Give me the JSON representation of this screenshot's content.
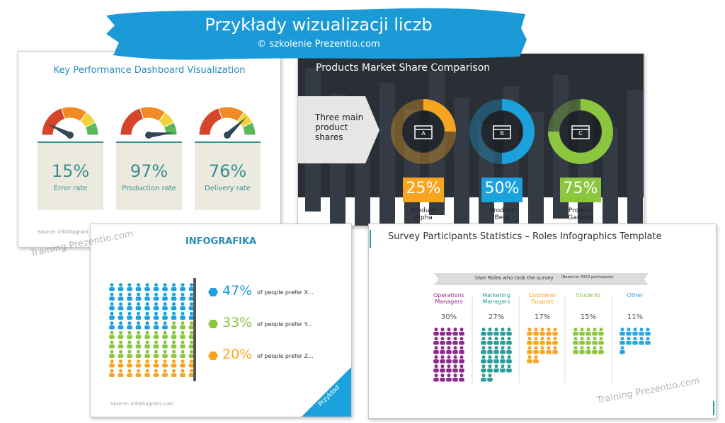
{
  "header": {
    "title": "Przykłady wizualizacji liczb",
    "subtitle": "© szkolenie Prezentio.com"
  },
  "watermarks": [
    "Training Prezentio.com",
    "Training Prezentio.com"
  ],
  "kpi": {
    "title": "Key Performance Dashboard Visualization",
    "source": "Source: infoDiagram.com",
    "gauges": [
      {
        "value": 15,
        "label": "15%",
        "caption": "Error rate"
      },
      {
        "value": 97,
        "label": "97%",
        "caption": "Production rate"
      },
      {
        "value": 76,
        "label": "76%",
        "caption": "Delivery rate"
      }
    ]
  },
  "market": {
    "title": "Products Market Share Comparison",
    "intro": "Three main product shares",
    "products": [
      {
        "letter": "A",
        "value": 25,
        "label": "25%",
        "name": "Product Alpha",
        "color": "#f7a521"
      },
      {
        "letter": "B",
        "value": 50,
        "label": "50%",
        "name": "Product Beta",
        "color": "#1ba1db"
      },
      {
        "letter": "C",
        "value": 75,
        "label": "75%",
        "name": "Product Gamma",
        "color": "#8cc63f"
      }
    ]
  },
  "infographic": {
    "title": "INFOGRAFIKA",
    "source": "Source: infoDiagram.com",
    "ribbon": "Przykład",
    "items": [
      {
        "value": 47,
        "label": "47%",
        "text": "of people prefer X...",
        "color": "#1ba1db"
      },
      {
        "value": 33,
        "label": "33%",
        "text": "of people prefer Y...",
        "color": "#8cc63f"
      },
      {
        "value": 20,
        "label": "20%",
        "text": "of people prefer Z...",
        "color": "#f7a521"
      }
    ]
  },
  "survey": {
    "title": "Survey Participants Statistics – Roles Infographics Template",
    "banner": "User Roles who took the survey",
    "banner_note": "(Based on XXXX participants)",
    "roles": [
      {
        "name": "Operations Managers",
        "value": 30,
        "label": "30%",
        "color": "#8e2a8c"
      },
      {
        "name": "Marketing Managers",
        "value": 27,
        "label": "27%",
        "color": "#2a9d9b"
      },
      {
        "name": "Customer Support",
        "value": 17,
        "label": "17%",
        "color": "#f6a623"
      },
      {
        "name": "Students",
        "value": 15,
        "label": "15%",
        "color": "#8cc63f"
      },
      {
        "name": "Other",
        "value": 11,
        "label": "11%",
        "color": "#29a8e0"
      }
    ]
  }
}
